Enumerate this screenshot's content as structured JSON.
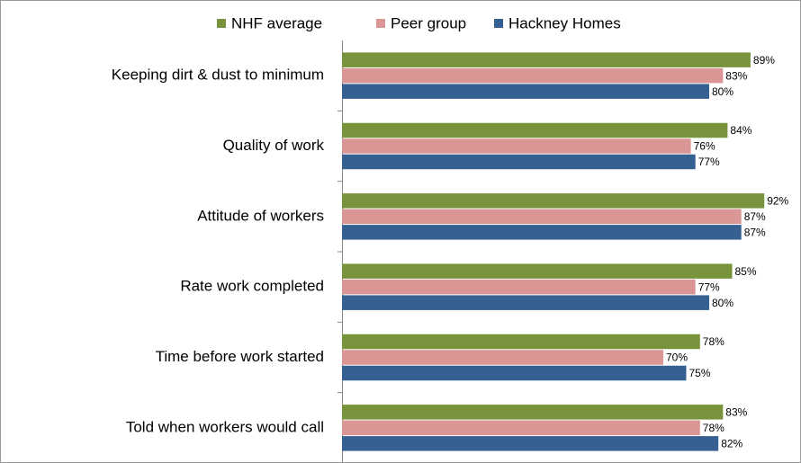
{
  "chart_data": {
    "type": "barh",
    "categories": [
      "Keeping dirt & dust to minimum",
      "Quality of work",
      "Attitude of workers",
      "Rate work completed",
      "Time before work started",
      "Told when workers would call"
    ],
    "series": [
      {
        "name": "NHF average",
        "color": "#77933c",
        "values": [
          89,
          84,
          92,
          85,
          78,
          83
        ],
        "value_labels": [
          "89%",
          "84%",
          "92%",
          "85%",
          "78%",
          "83%"
        ]
      },
      {
        "name": "Peer group",
        "color": "#d99694",
        "values": [
          83,
          76,
          87,
          77,
          70,
          78
        ],
        "value_labels": [
          "83%",
          "76%",
          "87%",
          "77%",
          "70%",
          "78%"
        ]
      },
      {
        "name": "Hackney Homes",
        "color": "#376092",
        "values": [
          80,
          77,
          87,
          80,
          75,
          82
        ],
        "value_labels": [
          "80%",
          "77%",
          "87%",
          "80%",
          "75%",
          "82%"
        ]
      }
    ],
    "xlim": [
      0,
      100
    ],
    "legend": "top"
  }
}
